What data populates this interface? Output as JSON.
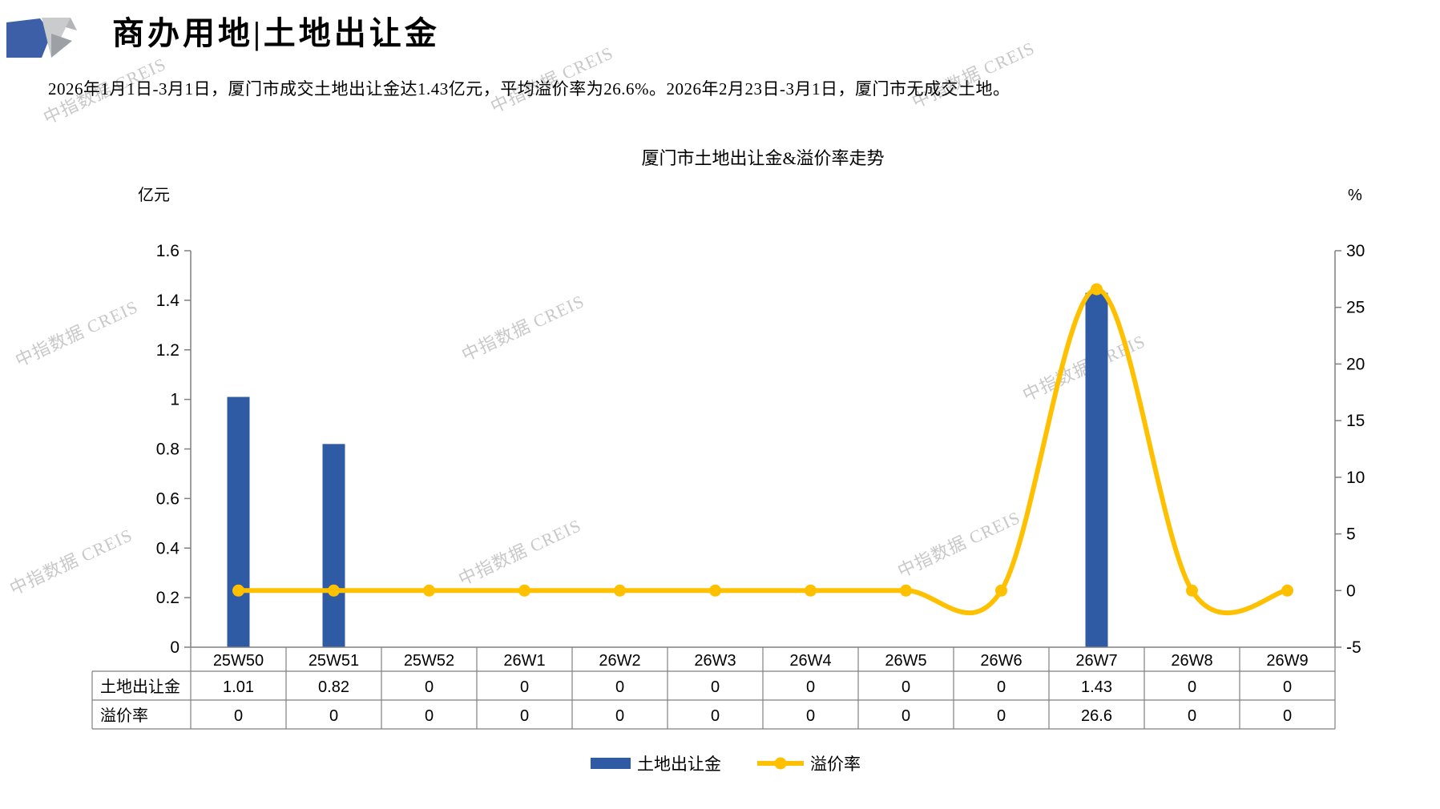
{
  "header": {
    "title": "商办用地|土地出让金"
  },
  "summary": "2026年1月1日-3月1日，厦门市成交土地出让金达1.43亿元，平均溢价率为26.6%。2026年2月23日-3月1日，厦门市无成交土地。",
  "watermark_text": "中指数据 CREIS",
  "chart_data": {
    "type": "bar+line",
    "title": "厦门市土地出让金&溢价率走势",
    "categories": [
      "25W50",
      "25W51",
      "25W52",
      "26W1",
      "26W2",
      "26W3",
      "26W4",
      "26W5",
      "26W6",
      "26W7",
      "26W8",
      "26W9"
    ],
    "series": [
      {
        "name": "土地出让金",
        "type": "bar",
        "axis": "left",
        "color": "#2F5BA4",
        "values": [
          1.01,
          0.82,
          0,
          0,
          0,
          0,
          0,
          0,
          0,
          1.43,
          0,
          0
        ]
      },
      {
        "name": "溢价率",
        "type": "line",
        "axis": "right",
        "color": "#FFC000",
        "smooth": true,
        "values": [
          0,
          0,
          0,
          0,
          0,
          0,
          0,
          0,
          0,
          26.6,
          0,
          0
        ]
      }
    ],
    "left_axis": {
      "title": "亿元",
      "min": 0,
      "max": 1.6,
      "step": 0.2,
      "tick_labels": [
        "1.6",
        "1.4",
        "1.2",
        "1",
        "0.8",
        "0.6",
        "0.4",
        "0.2",
        "0"
      ]
    },
    "right_axis": {
      "title": "%",
      "min": -5,
      "max": 30,
      "step": 5,
      "tick_labels": [
        "30",
        "25",
        "20",
        "15",
        "10",
        "5",
        "0",
        "-5"
      ]
    },
    "grid": false,
    "legend_position": "bottom",
    "legend": [
      "土地出让金",
      "溢价率"
    ],
    "data_table": {
      "rows": [
        {
          "label": "土地出让金",
          "values": [
            "1.01",
            "0.82",
            "0",
            "0",
            "0",
            "0",
            "0",
            "0",
            "0",
            "1.43",
            "0",
            "0"
          ]
        },
        {
          "label": "溢价率",
          "values": [
            "0",
            "0",
            "0",
            "0",
            "0",
            "0",
            "0",
            "0",
            "0",
            "26.6",
            "0",
            "0"
          ]
        }
      ]
    }
  }
}
